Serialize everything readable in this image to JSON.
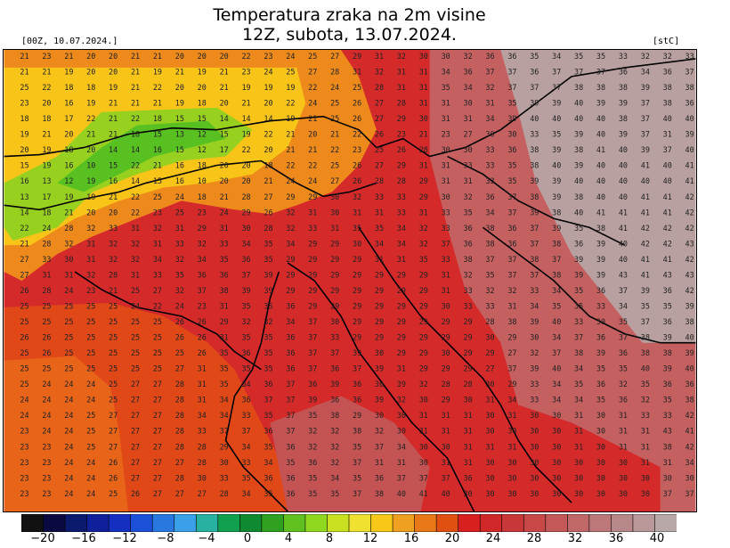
{
  "header": {
    "title_line1": "Temperatura zraka na 2m visine",
    "title_line2": "12Z, subota, 13.07.2024.",
    "run_info": "[00Z, 10.07.2024.]",
    "unit": "[stC]"
  },
  "colorbar": {
    "colors": [
      "#111111",
      "#0a0a40",
      "#0c1a6e",
      "#10209a",
      "#1530c0",
      "#1c50d8",
      "#2878e0",
      "#3aa0e8",
      "#28b0a0",
      "#10a050",
      "#108a30",
      "#30a020",
      "#60c020",
      "#90d820",
      "#c8e020",
      "#f0e030",
      "#f8c818",
      "#f0a020",
      "#e87818",
      "#e05010",
      "#d82020",
      "#d02828",
      "#c83838",
      "#c84848",
      "#c45858",
      "#c06868",
      "#bc7878",
      "#b88888",
      "#b89898",
      "#b8a8a8"
    ],
    "ticks": [
      "−20",
      "−16",
      "−12",
      "−8",
      "−4",
      "0",
      "4",
      "8",
      "12",
      "16",
      "20",
      "24",
      "28",
      "32",
      "36",
      "40"
    ]
  },
  "map": {
    "label_rows": [
      "21 23 21 20 20 21 21 20 20 20 22 23 24 25 27 29 31 32 30 30 32 36 36 35 34 35 35 33 32 32 33",
      "21 21 19 20 20 21 19 21 19 21 23 24 25 27 28 31 32 31 31 34 36 37 37 36 37 37 37 36 34 36 37",
      "25 22 18 18 19 21 22 20 20 21 19 19 19 22 24 25 28 31 31 35 34 32 37 37 37 38 38 38 39 38 38",
      "23 20 16 19 21 21 21 19 18 20 21 20 22 24 25 26 27 28 31 31 30 31 35 39 39 40 39 39 37 38 36",
      "18 18 17 22 21 22 18 15 15 14 14 14 19 21 25 26 27 29 30 31 31 34 39 40 40 40 40 38 37 40 40",
      "19 21 20 21 21 18 15 13 12 15 19 22 21 20 21 22 26 23 21 23 27 30 30 33 35 39 40 39 37 31 39",
      "20 19 18 20 14 14 16 15 12 17 22 20 21 21 22 23 25 26 28 30 30 33 36 38 39 38 41 40 39 37 40",
      "15 19 16 10 15 22 21 16 18 20 20 18 22 22 25 26 27 29 31 31 33 33 35 38 40 39 40 40 41 40 41",
      "16 13 12 19 16 14 15 16 10 20 20 21 24 24 27 26 28 28 29 31 31 33 35 39 39 40 40 40 40 40 41",
      "13 17 19 19 21 22 25 24 18 21 28 27 29 29 30 32 33 33 29 30 32 36 37 38 39 38 40 40 41 41 42",
      "14 18 21 20 20 22 23 25 23 24 29 26 32 31 30 31 31 33 31 33 35 34 37 39 38 40 41 41 41 41 42",
      "22 24 28 32 33 31 32 31 29 31 30 28 32 33 31 35 35 34 32 33 36 38 36 37 39 35 38 41 42 42 42",
      "21 28 32 31 32 32 31 33 32 33 34 35 34 29 29 30 34 34 32 37 36 38 36 37 38 36 39 40 42 42 43",
      "27 33 30 31 32 32 34 32 34 35 36 35 29 29 29 29 31 31 35 33 38 37 37 38 37 39 39 40 41 41 42",
      "27 31 31 32 28 31 33 35 36 36 37 39 29 29 29 29 29 29 29 31 32 35 37 37 38 39 39 43 41 43 43",
      "26 28 24 23 21 25 27 32 37 38 39 39 29 29 29 29 29 29 29 31 33 32 32 33 34 35 36 37 39 36 42",
      "25 25 25 25 25 24 22 24 23 31 35 35 36 29 29 29 29 29 29 30 33 33 31 34 35 35 33 34 35 35 39",
      "25 25 25 25 25 25 25 26 26 29 32 32 34 37 30 29 29 29 29 29 29 28 38 39 40 33 30 35 37 36 38",
      "26 26 25 25 25 25 25 26 26 31 35 35 36 37 33 29 29 29 29 29 29 30 29 30 34 37 36 37 38 39 40",
      "25 26 25 25 25 25 25 25 26 35 36 35 36 37 37 39 30 29 29 30 29 29 27 32 37 38 39 36 38 38 39",
      "25 25 25 25 25 25 25 27 31 35 35 35 36 37 36 37 39 31 29 29 29 27 37 39 40 34 35 35 40 39 40",
      "25 24 24 24 25 27 27 28 31 35 34 36 37 36 39 36 36 39 32 28 28 30 29 33 34 35 36 32 35 36 36",
      "24 24 24 24 25 27 27 28 31 34 36 37 37 39 36 36 39 32 30 29 30 31 34 33 34 34 35 36 32 35 38",
      "24 24 24 25 27 27 27 28 34 34 33 35 37 35 38 29 30 30 31 31 31 30 31 30 30 31 30 31 33 33 42",
      "23 24 24 25 27 27 27 28 33 37 37 36 37 32 32 38 32 30 31 31 31 30 30 30 30 31 30 31 31 43 41",
      "23 23 24 25 27 27 27 28 28 29 34 35 36 32 32 35 37 34 30 30 31 31 31 30 30 31 30 31 31 38 42",
      "23 23 24 24 26 27 27 27 28 30 33 34 35 36 32 37 31 31 30 31 31 30 30 30 30 30 30 30 31 31 34",
      "23 23 24 24 26 27 27 28 30 33 35 36 36 35 34 35 36 37 37 37 36 30 30 30 30 30 30 30 30 30 30",
      "23 23 24 24 25 26 27 27 27 28 34 35 36 35 35 37 38 40 41 40 30 30 30 30 30 30 30 30 30 37 37"
    ]
  }
}
